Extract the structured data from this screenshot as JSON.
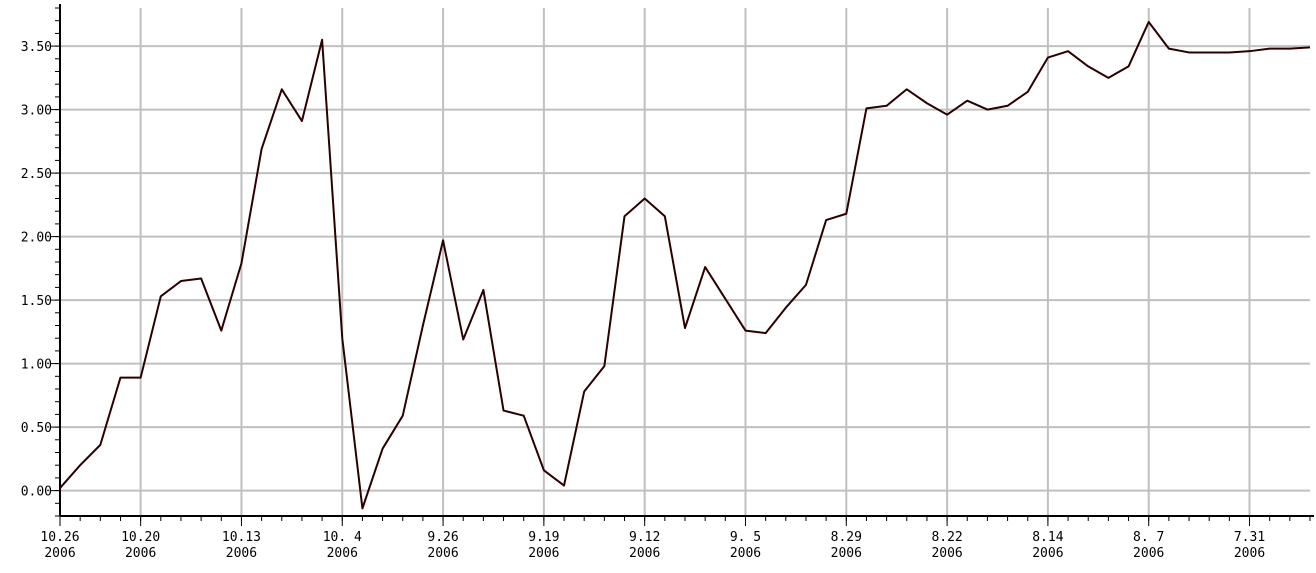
{
  "chart_data": {
    "type": "line",
    "title": "",
    "xlabel": "",
    "ylabel": "",
    "ylim": [
      -0.2,
      3.8
    ],
    "yticks": [
      0.0,
      0.5,
      1.0,
      1.5,
      2.0,
      2.5,
      3.0,
      3.5
    ],
    "yticklabels": [
      "0.00",
      "0.50",
      "1.00",
      "1.50",
      "2.00",
      "2.50",
      "3.00",
      "3.50"
    ],
    "x_order": "descending (most recent on the left)",
    "xticks": [
      {
        "index": 0,
        "line1": "10.26",
        "line2": "2006"
      },
      {
        "index": 4,
        "line1": "10.20",
        "line2": "2006"
      },
      {
        "index": 9,
        "line1": "10.13",
        "line2": "2006"
      },
      {
        "index": 14,
        "line1": "10. 4",
        "line2": "2006"
      },
      {
        "index": 19,
        "line1": "9.26",
        "line2": "2006"
      },
      {
        "index": 24,
        "line1": "9.19",
        "line2": "2006"
      },
      {
        "index": 29,
        "line1": "9.12",
        "line2": "2006"
      },
      {
        "index": 34,
        "line1": "9. 5",
        "line2": "2006"
      },
      {
        "index": 39,
        "line1": "8.29",
        "line2": "2006"
      },
      {
        "index": 44,
        "line1": "8.22",
        "line2": "2006"
      },
      {
        "index": 49,
        "line1": "8.14",
        "line2": "2006"
      },
      {
        "index": 54,
        "line1": "8. 7",
        "line2": "2006"
      },
      {
        "index": 59,
        "line1": "7.31",
        "line2": "2006"
      }
    ],
    "x_count": 63,
    "series": [
      {
        "color": "#2a0000",
        "values": [
          0.02,
          0.2,
          0.36,
          0.89,
          0.89,
          1.53,
          1.65,
          1.67,
          1.26,
          1.79,
          2.69,
          3.16,
          2.91,
          3.55,
          1.2,
          -0.14,
          0.33,
          0.59,
          1.3,
          1.97,
          1.19,
          1.58,
          0.63,
          0.59,
          0.16,
          0.04,
          0.78,
          0.98,
          2.16,
          2.3,
          2.16,
          1.28,
          1.76,
          1.51,
          1.26,
          1.24,
          1.44,
          1.62,
          2.13,
          2.18,
          3.01,
          3.03,
          3.16,
          3.05,
          2.96,
          3.07,
          3.0,
          3.03,
          3.14,
          3.41,
          3.46,
          3.34,
          3.25,
          3.34,
          3.69,
          3.48,
          3.45,
          3.45,
          3.45,
          3.46,
          3.48,
          3.48,
          3.49
        ]
      }
    ],
    "grid": true,
    "legend": "none"
  }
}
